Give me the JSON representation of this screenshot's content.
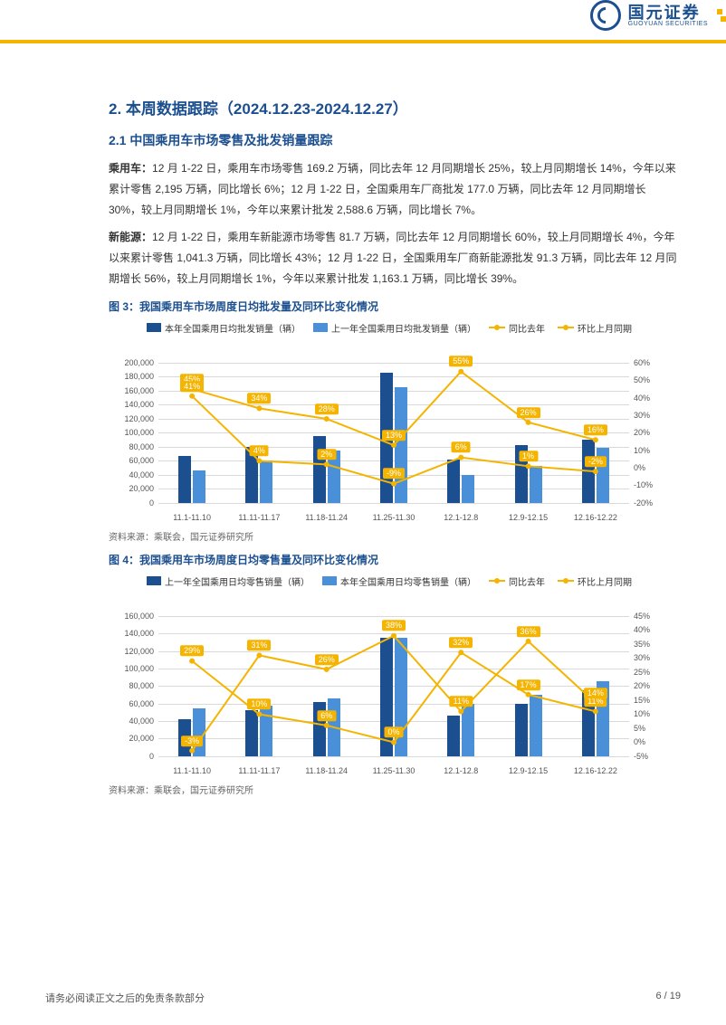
{
  "brand": {
    "name_cn": "国元证券",
    "name_en": "GUOYUAN SECURITIES",
    "accent_color": "#f4b400",
    "primary_color": "#1b4f8f"
  },
  "section": {
    "number": "2.",
    "title": "本周数据跟踪（2024.12.23-2024.12.27）",
    "sub_number": "2.1",
    "sub_title": "中国乘用车市场零售及批发销量跟踪"
  },
  "paragraphs": {
    "p1_label": "乘用车：",
    "p1_text": "12 月 1-22 日，乘用车市场零售 169.2 万辆，同比去年 12 月同期增长 25%，较上月同期增长 14%，今年以来累计零售 2,195 万辆，同比增长 6%；12 月 1-22 日，全国乘用车厂商批发 177.0 万辆，同比去年 12 月同期增长 30%，较上月同期增长 1%，今年以来累计批发 2,588.6 万辆，同比增长 7%。",
    "p2_label": "新能源：",
    "p2_text": "12 月 1-22 日，乘用车新能源市场零售 81.7 万辆，同比去年 12 月同期增长 60%，较上月同期增长 4%，今年以来累计零售 1,041.3 万辆，同比增长 43%；12 月 1-22 日，全国乘用车厂商新能源批发 91.3 万辆，同比去年 12 月同期增长 56%，较上月同期增长 1%，今年以来累计批发 1,163.1 万辆，同比增长 39%。"
  },
  "figure3": {
    "title": "图 3：我国乘用车市场周度日均批发量及同环比变化情况",
    "source": "资料来源：乘联会，国元证券研究所",
    "type": "bar+line",
    "categories": [
      "11.1-11.10",
      "11.11-11.17",
      "11.18-11.24",
      "11.25-11.30",
      "12.1-12.8",
      "12.9-12.15",
      "12.16-12.22"
    ],
    "legend": {
      "bar1": "本年全国乘用日均批发销量（辆）",
      "bar2": "上一年全国乘用日均批发销量（辆）",
      "line1": "同比去年",
      "line2": "环比上月同期"
    },
    "bars": {
      "this_year": [
        67000,
        80000,
        95000,
        185000,
        62000,
        82000,
        90000
      ],
      "last_year": [
        46000,
        60000,
        74000,
        165000,
        40000,
        52000,
        78000
      ]
    },
    "lines": {
      "yoy": [
        45,
        34,
        28,
        13,
        55,
        26,
        16
      ],
      "mom": [
        41,
        4,
        2,
        -9,
        6,
        1,
        -2
      ]
    },
    "line_labels": {
      "yoy": [
        "45%",
        "34%",
        "28%",
        "13%",
        "55%",
        "26%",
        "16%"
      ],
      "mom": [
        "41%",
        "4%",
        "2%",
        "-9%",
        "6%",
        "1%",
        "-2%"
      ]
    },
    "colors": {
      "bar1": "#1b4f8f",
      "bar2": "#4a90d9",
      "line1": "#f4b400",
      "line2": "#f4b400",
      "grid": "#d9d9d9",
      "bg": "#ffffff"
    },
    "y_left": {
      "min": 0,
      "max": 200000,
      "step": 20000
    },
    "y_right": {
      "min": -20,
      "max": 60,
      "step": 10
    },
    "bar_width_abs": 14,
    "bar_gap": 2
  },
  "figure4": {
    "title": "图 4：我国乘用车市场周度日均零售量及同环比变化情况",
    "source": "资料来源：乘联会，国元证券研究所",
    "type": "bar+line",
    "categories": [
      "11.1-11.10",
      "11.11-11.17",
      "11.18-11.24",
      "11.25-11.30",
      "12.1-12.8",
      "12.9-12.15",
      "12.16-12.22"
    ],
    "legend": {
      "bar1": "上一年全国乘用日均零售销量（辆）",
      "bar2": "本年全国乘用日均零售销量（辆）",
      "line1": "同比去年",
      "line2": "环比上月同期"
    },
    "bars": {
      "last_year": [
        42000,
        52000,
        62000,
        135000,
        46000,
        60000,
        75000
      ],
      "this_year": [
        55000,
        58000,
        66000,
        135000,
        60000,
        70000,
        85000
      ]
    },
    "lines": {
      "yoy": [
        29,
        10,
        6,
        0,
        32,
        17,
        11
      ],
      "mom": [
        -3,
        31,
        26,
        38,
        11,
        36,
        14
      ]
    },
    "line_labels": {
      "yoy": [
        "29%",
        "10%",
        "6%",
        "0%",
        "32%",
        "17%",
        "11%"
      ],
      "mom": [
        "-3%",
        "31%",
        "26%",
        "38%",
        "11%",
        "36%",
        "14%"
      ]
    },
    "colors": {
      "bar1": "#1b4f8f",
      "bar2": "#4a90d9",
      "line1": "#f4b400",
      "line2": "#f4b400",
      "grid": "#d9d9d9",
      "bg": "#ffffff"
    },
    "y_left": {
      "min": 0,
      "max": 160000,
      "step": 20000
    },
    "y_right": {
      "min": -5,
      "max": 45,
      "step": 5
    },
    "bar_width_abs": 14,
    "bar_gap": 2
  },
  "footer": {
    "disclaimer": "请务必阅读正文之后的免责条款部分",
    "page": "6 / 19"
  }
}
